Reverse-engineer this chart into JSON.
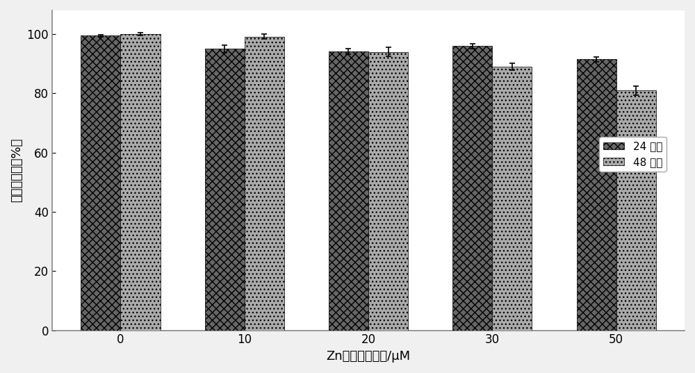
{
  "categories": [
    "0",
    "10",
    "20",
    "30",
    "50"
  ],
  "series": [
    {
      "label": "24 小时",
      "values": [
        99.5,
        95.0,
        94.2,
        96.0,
        91.5
      ],
      "errors": [
        0.4,
        1.2,
        1.0,
        0.8,
        0.8
      ],
      "color": "#666666",
      "hatch": "xxx"
    },
    {
      "label": "48 小时",
      "values": [
        100.0,
        99.2,
        94.0,
        89.0,
        81.0
      ],
      "errors": [
        0.4,
        0.8,
        1.5,
        1.2,
        1.5
      ],
      "color": "#aaaaaa",
      "hatch": "..."
    }
  ],
  "xlabel": "Zn纳米颗粒浓度/μM",
  "ylabel": "细胞存活率（%）",
  "ylim": [
    0,
    108
  ],
  "yticks": [
    0,
    20,
    40,
    60,
    80,
    100
  ],
  "bar_width": 0.32,
  "plot_bg": "#ffffff",
  "figure_bg": "#f0f0f0",
  "legend_fontsize": 11,
  "axis_fontsize": 13,
  "tick_fontsize": 12
}
